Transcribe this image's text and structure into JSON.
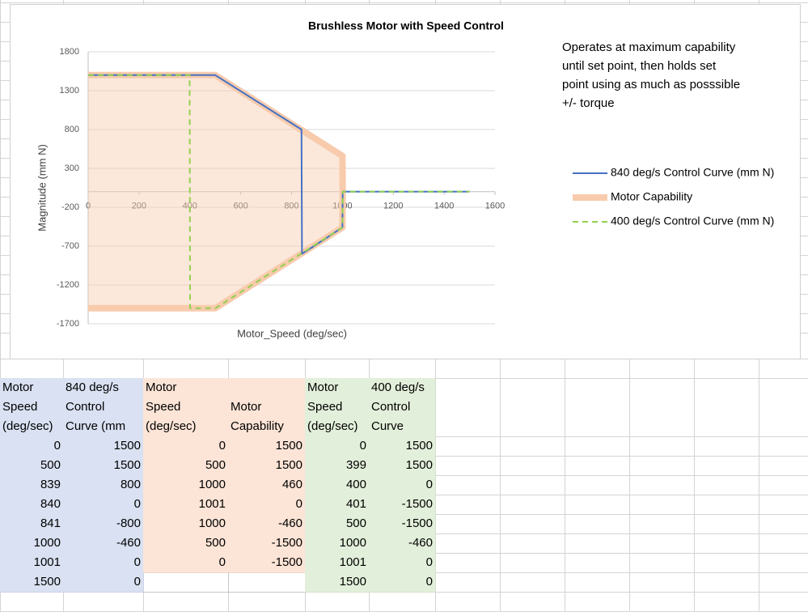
{
  "chart_data": {
    "type": "line",
    "title": "Brushless Motor with Speed Control",
    "xlabel": "Motor_Speed (deg/sec)",
    "ylabel": "Magnitude (mm N)",
    "annotation": [
      "Operates at maximum capability",
      "until set point, then holds set",
      "point using as much as posssible",
      "+/- torque"
    ],
    "xlim": [
      0,
      1600
    ],
    "xticks": [
      0,
      200,
      400,
      600,
      800,
      1000,
      1200,
      1400,
      1600
    ],
    "ylim": [
      -1700,
      1800
    ],
    "yticks": [
      -1700,
      -1200,
      -700,
      -200,
      300,
      800,
      1300,
      1800
    ],
    "grid": true,
    "legend": "right",
    "series": [
      {
        "name": "840 deg/s Control Curve (mm N)",
        "color": "#4472c4",
        "x": [
          0,
          500,
          839,
          840,
          841,
          1000,
          1001,
          1500
        ],
        "values": [
          1500,
          1500,
          800,
          0,
          -800,
          -460,
          0,
          0
        ]
      },
      {
        "name": "Motor Capability",
        "color": "#f8cbad",
        "width": 8,
        "fill": true,
        "x": [
          0,
          500,
          1000,
          1001,
          1000,
          500,
          0
        ],
        "values": [
          1500,
          1500,
          460,
          0,
          -460,
          -1500,
          -1500
        ]
      },
      {
        "name": "400 deg/s Control Curve (mm N)",
        "color": "#92d050",
        "dash": true,
        "x": [
          0,
          399,
          400,
          401,
          500,
          1000,
          1001,
          1500
        ],
        "values": [
          1500,
          1500,
          0,
          -1500,
          -1500,
          -460,
          0,
          0
        ]
      }
    ]
  },
  "table": {
    "header": [
      [
        "Motor",
        "Speed",
        "(deg/sec)"
      ],
      [
        "840 deg/s",
        "Control",
        "Curve (mm"
      ],
      [
        "Motor",
        "Speed",
        "(deg/sec)"
      ],
      [
        "Motor",
        "Capability"
      ],
      [
        "Motor",
        "Speed",
        "(deg/sec)"
      ],
      [
        "400 deg/s",
        "Control",
        "Curve"
      ]
    ],
    "rows": [
      [
        0,
        1500,
        0,
        1500,
        0,
        1500
      ],
      [
        500,
        1500,
        500,
        1500,
        399,
        1500
      ],
      [
        839,
        800,
        1000,
        460,
        400,
        0
      ],
      [
        840,
        0,
        1001,
        0,
        401,
        -1500
      ],
      [
        841,
        -800,
        1000,
        -460,
        500,
        -1500
      ],
      [
        1000,
        -460,
        500,
        -1500,
        1000,
        -460
      ],
      [
        1001,
        0,
        0,
        -1500,
        1001,
        0
      ],
      [
        1500,
        0,
        null,
        null,
        1500,
        0
      ]
    ]
  }
}
